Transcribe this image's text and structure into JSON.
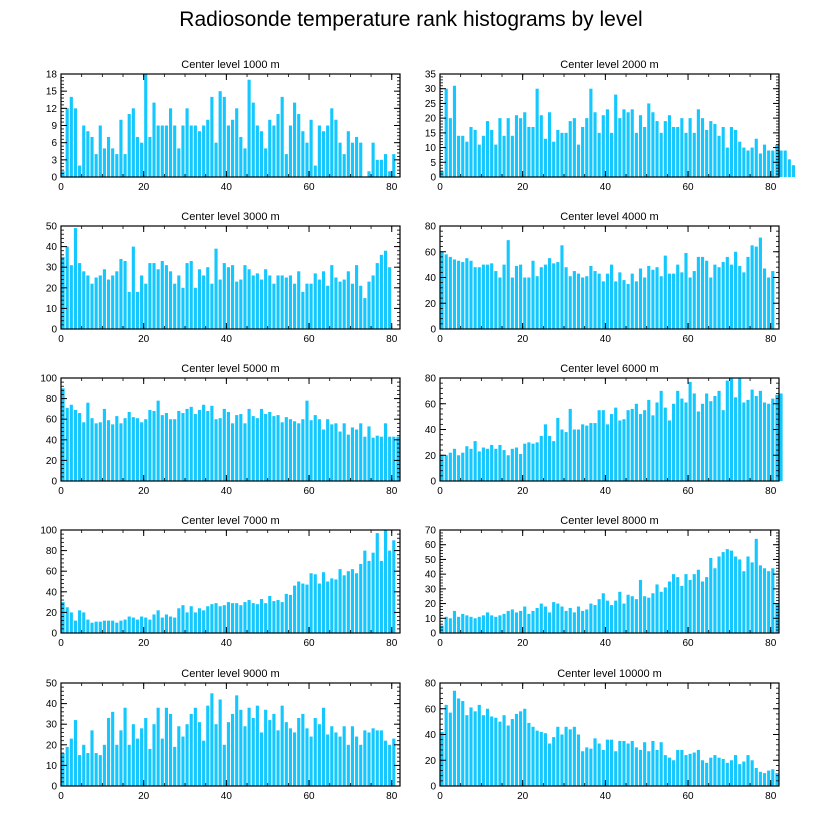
{
  "title": "Radiosonde temperature rank histograms by level",
  "colors": {
    "bar": "#14c8ff",
    "axis": "#000000"
  },
  "chart_data": [
    {
      "type": "bar",
      "title": "Center level 1000 m",
      "xlim": [
        0,
        82
      ],
      "ylim": [
        0,
        18
      ],
      "xticks": [
        0,
        20,
        40,
        60,
        80
      ],
      "yticks": [
        0,
        3,
        6,
        9,
        12,
        15,
        18
      ],
      "values": [
        1,
        12,
        14,
        12,
        2,
        9,
        8,
        7,
        4,
        9,
        5,
        7,
        5,
        4,
        10,
        4,
        11,
        12,
        7,
        6,
        18,
        7,
        13,
        9,
        9,
        9,
        12,
        9,
        5,
        9,
        12,
        9,
        9,
        8,
        9,
        10,
        14,
        6,
        15,
        14,
        9,
        10,
        12,
        7,
        5,
        17,
        13,
        9,
        8,
        5,
        10,
        9,
        11,
        14,
        4,
        9,
        13,
        11,
        8,
        6,
        10,
        2,
        9,
        8,
        9,
        12,
        10,
        6,
        4,
        8,
        6,
        7,
        6,
        0,
        1,
        6,
        3,
        3,
        4,
        1,
        4,
        0
      ]
    },
    {
      "type": "bar",
      "title": "Center level 2000 m",
      "xlim": [
        0,
        82
      ],
      "ylim": [
        0,
        35
      ],
      "xticks": [
        0,
        20,
        40,
        60,
        80
      ],
      "yticks": [
        0,
        5,
        10,
        15,
        20,
        25,
        30,
        35
      ],
      "values": [
        2,
        30,
        20,
        31,
        14,
        14,
        12,
        17,
        16,
        11,
        14,
        19,
        16,
        11,
        20,
        14,
        20,
        14,
        21,
        20,
        22,
        17,
        17,
        30,
        21,
        13,
        22,
        12,
        16,
        15,
        15,
        19,
        20,
        11,
        17,
        20,
        30,
        22,
        15,
        21,
        23,
        15,
        28,
        20,
        23,
        22,
        23,
        15,
        21,
        17,
        25,
        22,
        19,
        15,
        19,
        21,
        17,
        17,
        20,
        15,
        20,
        15,
        23,
        20,
        16,
        19,
        18,
        14,
        17,
        10,
        17,
        16,
        12,
        10,
        9,
        10,
        13,
        8,
        11,
        9,
        9,
        11,
        9,
        9,
        6,
        4
      ]
    },
    {
      "type": "bar",
      "title": "Center level 3000 m",
      "xlim": [
        0,
        82
      ],
      "ylim": [
        0,
        50
      ],
      "xticks": [
        0,
        20,
        40,
        60,
        80
      ],
      "yticks": [
        0,
        10,
        20,
        30,
        40,
        50
      ],
      "values": [
        35,
        40,
        31,
        49,
        32,
        28,
        26,
        22,
        25,
        26,
        29,
        24,
        26,
        28,
        34,
        33,
        18,
        40,
        18,
        26,
        22,
        32,
        32,
        29,
        33,
        31,
        28,
        22,
        26,
        20,
        32,
        33,
        20,
        29,
        26,
        30,
        22,
        39,
        24,
        32,
        30,
        31,
        23,
        24,
        31,
        29,
        26,
        27,
        24,
        29,
        26,
        22,
        26,
        26,
        25,
        26,
        22,
        28,
        18,
        22,
        22,
        27,
        24,
        28,
        21,
        31,
        25,
        23,
        24,
        28,
        22,
        31,
        21,
        15,
        23,
        26,
        32,
        36,
        38,
        30
      ]
    },
    {
      "type": "bar",
      "title": "Center level 4000 m",
      "xlim": [
        0,
        82
      ],
      "ylim": [
        0,
        80
      ],
      "xticks": [
        0,
        20,
        40,
        60,
        80
      ],
      "yticks": [
        0,
        20,
        40,
        60,
        80
      ],
      "values": [
        60,
        58,
        56,
        54,
        53,
        52,
        55,
        53,
        48,
        48,
        50,
        50,
        51,
        45,
        40,
        50,
        69,
        40,
        49,
        50,
        40,
        40,
        53,
        41,
        48,
        50,
        55,
        51,
        52,
        65,
        48,
        41,
        45,
        43,
        40,
        41,
        49,
        45,
        43,
        37,
        43,
        50,
        37,
        44,
        38,
        35,
        43,
        37,
        47,
        40,
        49,
        46,
        48,
        41,
        57,
        43,
        43,
        50,
        44,
        59,
        40,
        45,
        56,
        56,
        53,
        40,
        50,
        48,
        52,
        56,
        50,
        60,
        49,
        44,
        56,
        65,
        64,
        71,
        47,
        40,
        45
      ]
    },
    {
      "type": "bar",
      "title": "Center level 5000 m",
      "xlim": [
        0,
        82
      ],
      "ylim": [
        0,
        100
      ],
      "xticks": [
        0,
        20,
        40,
        60,
        80
      ],
      "yticks": [
        0,
        20,
        40,
        60,
        80,
        100
      ],
      "values": [
        90,
        71,
        74,
        69,
        66,
        57,
        76,
        61,
        56,
        57,
        70,
        59,
        55,
        63,
        56,
        61,
        67,
        62,
        61,
        57,
        60,
        69,
        68,
        78,
        64,
        66,
        60,
        60,
        68,
        66,
        70,
        72,
        65,
        69,
        74,
        68,
        73,
        60,
        61,
        70,
        67,
        56,
        64,
        65,
        56,
        70,
        63,
        61,
        70,
        65,
        67,
        63,
        64,
        57,
        62,
        60,
        58,
        56,
        60,
        78,
        59,
        64,
        60,
        50,
        60,
        55,
        56,
        48,
        56,
        45,
        52,
        50,
        56,
        43,
        53,
        42,
        44,
        43,
        56,
        43,
        43,
        43
      ]
    },
    {
      "type": "bar",
      "title": "Center level 6000 m",
      "xlim": [
        0,
        82
      ],
      "ylim": [
        0,
        80
      ],
      "xticks": [
        0,
        20,
        40,
        60,
        80
      ],
      "yticks": [
        0,
        20,
        40,
        60,
        80
      ],
      "values": [
        20,
        20,
        22,
        25,
        20,
        22,
        27,
        25,
        31,
        23,
        26,
        25,
        28,
        25,
        28,
        24,
        20,
        25,
        26,
        21,
        29,
        30,
        29,
        30,
        35,
        44,
        35,
        31,
        49,
        40,
        38,
        56,
        40,
        40,
        44,
        43,
        45,
        45,
        55,
        55,
        44,
        52,
        57,
        47,
        48,
        55,
        56,
        60,
        52,
        55,
        63,
        51,
        61,
        70,
        57,
        47,
        60,
        70,
        64,
        61,
        77,
        68,
        54,
        60,
        68,
        62,
        66,
        70,
        55,
        78,
        80,
        65,
        80,
        61,
        63,
        71,
        66,
        70,
        61,
        60,
        64,
        67,
        68
      ]
    },
    {
      "type": "bar",
      "title": "Center level 7000 m",
      "xlim": [
        0,
        82
      ],
      "ylim": [
        0,
        100
      ],
      "xticks": [
        0,
        20,
        40,
        60,
        80
      ],
      "yticks": [
        0,
        20,
        40,
        60,
        80,
        100
      ],
      "values": [
        30,
        25,
        20,
        12,
        22,
        20,
        13,
        10,
        11,
        11,
        12,
        12,
        12,
        10,
        12,
        13,
        16,
        15,
        13,
        16,
        15,
        13,
        18,
        22,
        15,
        18,
        16,
        15,
        24,
        27,
        20,
        26,
        20,
        24,
        22,
        26,
        28,
        29,
        26,
        27,
        30,
        29,
        29,
        27,
        30,
        32,
        29,
        28,
        33,
        29,
        36,
        31,
        32,
        30,
        38,
        37,
        46,
        50,
        48,
        47,
        58,
        57,
        48,
        59,
        50,
        53,
        52,
        62,
        56,
        60,
        62,
        58,
        67,
        80,
        70,
        78,
        97,
        70,
        100,
        80,
        90
      ]
    },
    {
      "type": "bar",
      "title": "Center level 8000 m",
      "xlim": [
        0,
        82
      ],
      "ylim": [
        0,
        70
      ],
      "xticks": [
        0,
        20,
        40,
        60,
        80
      ],
      "yticks": [
        0,
        10,
        20,
        30,
        40,
        50,
        60,
        70
      ],
      "values": [
        5,
        11,
        10,
        15,
        11,
        13,
        12,
        11,
        10,
        11,
        12,
        14,
        12,
        11,
        12,
        13,
        15,
        16,
        14,
        15,
        18,
        13,
        15,
        17,
        20,
        18,
        14,
        21,
        20,
        18,
        15,
        17,
        14,
        18,
        15,
        16,
        20,
        19,
        23,
        27,
        22,
        19,
        22,
        28,
        20,
        26,
        25,
        23,
        36,
        25,
        24,
        27,
        33,
        28,
        31,
        35,
        40,
        38,
        32,
        40,
        36,
        40,
        43,
        35,
        38,
        51,
        44,
        52,
        55,
        57,
        56,
        52,
        50,
        42,
        52,
        48,
        64,
        46,
        44,
        42,
        44,
        20
      ]
    },
    {
      "type": "bar",
      "title": "Center level 9000 m",
      "xlim": [
        0,
        82
      ],
      "ylim": [
        0,
        50
      ],
      "xticks": [
        0,
        20,
        40,
        60,
        80
      ],
      "yticks": [
        0,
        10,
        20,
        30,
        40,
        50
      ],
      "values": [
        16,
        19,
        23,
        32,
        15,
        20,
        16,
        27,
        16,
        15,
        20,
        33,
        36,
        20,
        27,
        38,
        20,
        30,
        23,
        28,
        33,
        18,
        30,
        38,
        23,
        38,
        35,
        19,
        29,
        24,
        30,
        35,
        38,
        31,
        22,
        39,
        45,
        30,
        42,
        20,
        31,
        35,
        44,
        37,
        29,
        38,
        33,
        39,
        26,
        37,
        32,
        35,
        27,
        39,
        31,
        28,
        26,
        33,
        35,
        28,
        24,
        33,
        30,
        38,
        25,
        29,
        26,
        24,
        29,
        20,
        29,
        24,
        20,
        27,
        26,
        28,
        27,
        27,
        22,
        20,
        23
      ]
    },
    {
      "type": "bar",
      "title": "Center level 10000 m",
      "xlim": [
        0,
        82
      ],
      "ylim": [
        0,
        80
      ],
      "xticks": [
        0,
        20,
        40,
        60,
        80
      ],
      "yticks": [
        0,
        20,
        40,
        60,
        80
      ],
      "values": [
        42,
        63,
        57,
        74,
        68,
        66,
        55,
        61,
        58,
        63,
        55,
        60,
        54,
        53,
        50,
        55,
        47,
        52,
        56,
        58,
        60,
        49,
        46,
        43,
        42,
        41,
        33,
        38,
        46,
        40,
        46,
        44,
        46,
        40,
        27,
        30,
        29,
        37,
        33,
        28,
        36,
        36,
        27,
        35,
        35,
        33,
        35,
        30,
        28,
        34,
        27,
        35,
        28,
        34,
        24,
        22,
        20,
        28,
        28,
        24,
        25,
        26,
        28,
        20,
        18,
        22,
        24,
        22,
        21,
        18,
        20,
        24,
        17,
        19,
        24,
        20,
        14,
        11,
        10,
        12,
        13,
        10
      ]
    }
  ]
}
